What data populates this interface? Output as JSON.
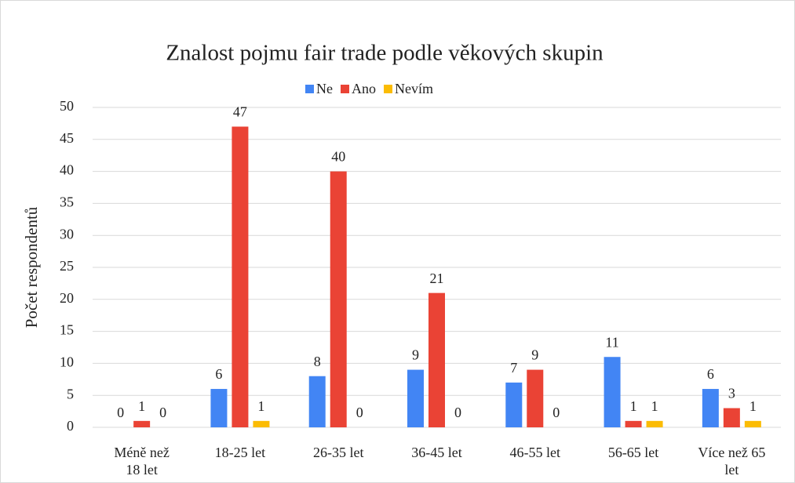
{
  "chart_data": {
    "type": "bar",
    "title": "Znalost pojmu fair trade podle věkových skupin",
    "y_label": "Počet respondentů",
    "categories": [
      "Méně než 18 let",
      "18-25 let",
      "26-35 let",
      "36-45 let",
      "46-55 let",
      "56-65 let",
      "Více než 65 let"
    ],
    "series": [
      {
        "name": "Ne",
        "color": "#4285f4",
        "values": [
          0,
          6,
          8,
          9,
          7,
          11,
          6
        ]
      },
      {
        "name": "Ano",
        "color": "#ea4335",
        "values": [
          1,
          47,
          40,
          21,
          9,
          1,
          3
        ]
      },
      {
        "name": "Nevím",
        "color": "#fbbc04",
        "values": [
          0,
          1,
          0,
          0,
          0,
          1,
          1
        ]
      }
    ],
    "ylim": [
      0,
      50
    ],
    "yticks": [
      0,
      5,
      10,
      15,
      20,
      25,
      30,
      35,
      40,
      45,
      50
    ],
    "grid": true,
    "legend": "top"
  }
}
